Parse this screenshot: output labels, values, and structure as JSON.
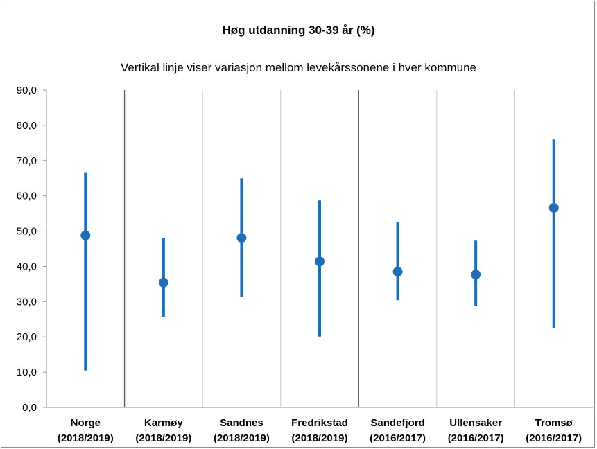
{
  "colors": {
    "series": "#1f6eb5",
    "axis": "#8c8c8c",
    "separator": "#595959"
  },
  "chart_data": {
    "type": "scatter",
    "title": "Høg utdanning 30-39 år (%)",
    "subtitle": "Vertikal linje viser variasjon mellom levekårssonene i hver kommune",
    "ylim": [
      0,
      90
    ],
    "yticks": [
      "0,0",
      "10,0",
      "20,0",
      "30,0",
      "40,0",
      "50,0",
      "60,0",
      "70,0",
      "80,0",
      "90,0"
    ],
    "grid": false,
    "categories": [
      {
        "name": "Norge",
        "period": "(2018/2019)"
      },
      {
        "name": "Karmøy",
        "period": "(2018/2019)"
      },
      {
        "name": "Sandnes",
        "period": "(2018/2019)"
      },
      {
        "name": "Fredrikstad",
        "period": "(2018/2019)"
      },
      {
        "name": "Sandefjord",
        "period": "(2016/2017)"
      },
      {
        "name": "Ullensaker",
        "period": "(2016/2017)"
      },
      {
        "name": "Tromsø",
        "period": "(2016/2017)"
      }
    ],
    "series": [
      {
        "values": [
          48.8,
          35.4,
          48.1,
          41.4,
          38.5,
          37.7,
          56.6
        ],
        "low": [
          10.5,
          25.7,
          31.4,
          20.1,
          30.4,
          28.8,
          22.6
        ],
        "high": [
          66.7,
          48.1,
          65.0,
          58.7,
          52.5,
          47.3,
          76.0
        ]
      }
    ],
    "separators_after": [
      0,
      3
    ]
  }
}
